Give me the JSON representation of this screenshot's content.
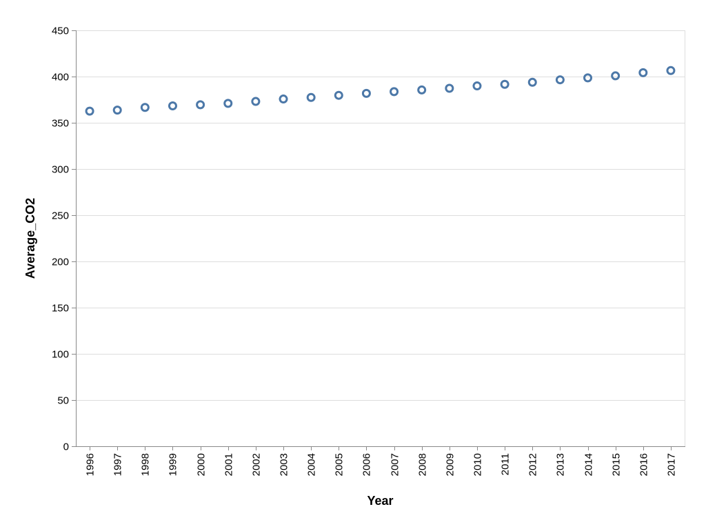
{
  "chart_data": {
    "type": "scatter",
    "title": "",
    "xlabel": "Year",
    "ylabel": "Average_CO2",
    "ylim": [
      0,
      450
    ],
    "yticks": [
      0,
      50,
      100,
      150,
      200,
      250,
      300,
      350,
      400,
      450
    ],
    "grid": true,
    "mark": "open-circle",
    "color": "#4c78a8",
    "categories": [
      "1996",
      "1997",
      "1998",
      "1999",
      "2000",
      "2001",
      "2002",
      "2003",
      "2004",
      "2005",
      "2006",
      "2007",
      "2008",
      "2009",
      "2010",
      "2011",
      "2012",
      "2013",
      "2014",
      "2015",
      "2016",
      "2017"
    ],
    "values": [
      362.6,
      363.7,
      366.6,
      368.3,
      369.5,
      371.0,
      373.1,
      375.7,
      377.4,
      379.7,
      381.8,
      383.7,
      385.5,
      387.3,
      389.9,
      391.6,
      393.8,
      396.5,
      398.6,
      400.8,
      404.2,
      406.5
    ]
  }
}
